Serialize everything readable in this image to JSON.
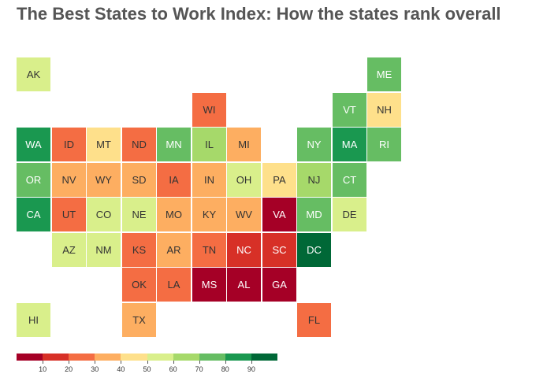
{
  "title": "The Best States to Work Index: How the states rank overall",
  "map": {
    "tiles": [
      {
        "state": "AK",
        "col": 0,
        "row": 0,
        "color": "#d9ef8b",
        "text_color": "#333333"
      },
      {
        "state": "ME",
        "col": 10,
        "row": 0,
        "color": "#66bd63",
        "text_color": "#ffffff"
      },
      {
        "state": "WI",
        "col": 5,
        "row": 1,
        "color": "#f46d43",
        "text_color": "#333333"
      },
      {
        "state": "VT",
        "col": 9,
        "row": 1,
        "color": "#66bd63",
        "text_color": "#ffffff"
      },
      {
        "state": "NH",
        "col": 10,
        "row": 1,
        "color": "#fee08b",
        "text_color": "#333333"
      },
      {
        "state": "WA",
        "col": 0,
        "row": 2,
        "color": "#1a9850",
        "text_color": "#ffffff"
      },
      {
        "state": "ID",
        "col": 1,
        "row": 2,
        "color": "#f46d43",
        "text_color": "#333333"
      },
      {
        "state": "MT",
        "col": 2,
        "row": 2,
        "color": "#fee08b",
        "text_color": "#333333"
      },
      {
        "state": "ND",
        "col": 3,
        "row": 2,
        "color": "#f46d43",
        "text_color": "#333333"
      },
      {
        "state": "MN",
        "col": 4,
        "row": 2,
        "color": "#66bd63",
        "text_color": "#ffffff"
      },
      {
        "state": "IL",
        "col": 5,
        "row": 2,
        "color": "#a6d96a",
        "text_color": "#333333"
      },
      {
        "state": "MI",
        "col": 6,
        "row": 2,
        "color": "#fdae61",
        "text_color": "#333333"
      },
      {
        "state": "NY",
        "col": 8,
        "row": 2,
        "color": "#66bd63",
        "text_color": "#ffffff"
      },
      {
        "state": "MA",
        "col": 9,
        "row": 2,
        "color": "#1a9850",
        "text_color": "#ffffff"
      },
      {
        "state": "RI",
        "col": 10,
        "row": 2,
        "color": "#66bd63",
        "text_color": "#ffffff"
      },
      {
        "state": "OR",
        "col": 0,
        "row": 3,
        "color": "#66bd63",
        "text_color": "#ffffff"
      },
      {
        "state": "NV",
        "col": 1,
        "row": 3,
        "color": "#fdae61",
        "text_color": "#333333"
      },
      {
        "state": "WY",
        "col": 2,
        "row": 3,
        "color": "#fdae61",
        "text_color": "#333333"
      },
      {
        "state": "SD",
        "col": 3,
        "row": 3,
        "color": "#fdae61",
        "text_color": "#333333"
      },
      {
        "state": "IA",
        "col": 4,
        "row": 3,
        "color": "#f46d43",
        "text_color": "#333333"
      },
      {
        "state": "IN",
        "col": 5,
        "row": 3,
        "color": "#fdae61",
        "text_color": "#333333"
      },
      {
        "state": "OH",
        "col": 6,
        "row": 3,
        "color": "#d9ef8b",
        "text_color": "#333333"
      },
      {
        "state": "PA",
        "col": 7,
        "row": 3,
        "color": "#fee08b",
        "text_color": "#333333"
      },
      {
        "state": "NJ",
        "col": 8,
        "row": 3,
        "color": "#a6d96a",
        "text_color": "#333333"
      },
      {
        "state": "CT",
        "col": 9,
        "row": 3,
        "color": "#66bd63",
        "text_color": "#ffffff"
      },
      {
        "state": "CA",
        "col": 0,
        "row": 4,
        "color": "#1a9850",
        "text_color": "#ffffff"
      },
      {
        "state": "UT",
        "col": 1,
        "row": 4,
        "color": "#f46d43",
        "text_color": "#333333"
      },
      {
        "state": "CO",
        "col": 2,
        "row": 4,
        "color": "#d9ef8b",
        "text_color": "#333333"
      },
      {
        "state": "NE",
        "col": 3,
        "row": 4,
        "color": "#d9ef8b",
        "text_color": "#333333"
      },
      {
        "state": "MO",
        "col": 4,
        "row": 4,
        "color": "#fdae61",
        "text_color": "#333333"
      },
      {
        "state": "KY",
        "col": 5,
        "row": 4,
        "color": "#fdae61",
        "text_color": "#333333"
      },
      {
        "state": "WV",
        "col": 6,
        "row": 4,
        "color": "#fdae61",
        "text_color": "#333333"
      },
      {
        "state": "VA",
        "col": 7,
        "row": 4,
        "color": "#a50026",
        "text_color": "#ffffff"
      },
      {
        "state": "MD",
        "col": 8,
        "row": 4,
        "color": "#66bd63",
        "text_color": "#ffffff"
      },
      {
        "state": "DE",
        "col": 9,
        "row": 4,
        "color": "#d9ef8b",
        "text_color": "#333333"
      },
      {
        "state": "AZ",
        "col": 1,
        "row": 5,
        "color": "#d9ef8b",
        "text_color": "#333333"
      },
      {
        "state": "NM",
        "col": 2,
        "row": 5,
        "color": "#d9ef8b",
        "text_color": "#333333"
      },
      {
        "state": "KS",
        "col": 3,
        "row": 5,
        "color": "#f46d43",
        "text_color": "#333333"
      },
      {
        "state": "AR",
        "col": 4,
        "row": 5,
        "color": "#fdae61",
        "text_color": "#333333"
      },
      {
        "state": "TN",
        "col": 5,
        "row": 5,
        "color": "#f46d43",
        "text_color": "#333333"
      },
      {
        "state": "NC",
        "col": 6,
        "row": 5,
        "color": "#d73027",
        "text_color": "#ffffff"
      },
      {
        "state": "SC",
        "col": 7,
        "row": 5,
        "color": "#d73027",
        "text_color": "#ffffff"
      },
      {
        "state": "DC",
        "col": 8,
        "row": 5,
        "color": "#006837",
        "text_color": "#ffffff"
      },
      {
        "state": "OK",
        "col": 3,
        "row": 6,
        "color": "#f46d43",
        "text_color": "#333333"
      },
      {
        "state": "LA",
        "col": 4,
        "row": 6,
        "color": "#f46d43",
        "text_color": "#333333"
      },
      {
        "state": "MS",
        "col": 5,
        "row": 6,
        "color": "#a50026",
        "text_color": "#ffffff"
      },
      {
        "state": "AL",
        "col": 6,
        "row": 6,
        "color": "#a50026",
        "text_color": "#ffffff"
      },
      {
        "state": "GA",
        "col": 7,
        "row": 6,
        "color": "#a50026",
        "text_color": "#ffffff"
      },
      {
        "state": "HI",
        "col": 0,
        "row": 7,
        "color": "#d9ef8b",
        "text_color": "#333333"
      },
      {
        "state": "TX",
        "col": 3,
        "row": 7,
        "color": "#fdae61",
        "text_color": "#333333"
      },
      {
        "state": "FL",
        "col": 8,
        "row": 7,
        "color": "#f46d43",
        "text_color": "#333333"
      }
    ]
  },
  "legend": {
    "colors": [
      "#a50026",
      "#d73027",
      "#f46d43",
      "#fdae61",
      "#fee08b",
      "#d9ef8b",
      "#a6d96a",
      "#66bd63",
      "#1a9850",
      "#006837"
    ],
    "ticks": [
      "10",
      "20",
      "30",
      "40",
      "50",
      "60",
      "70",
      "80",
      "90"
    ]
  }
}
